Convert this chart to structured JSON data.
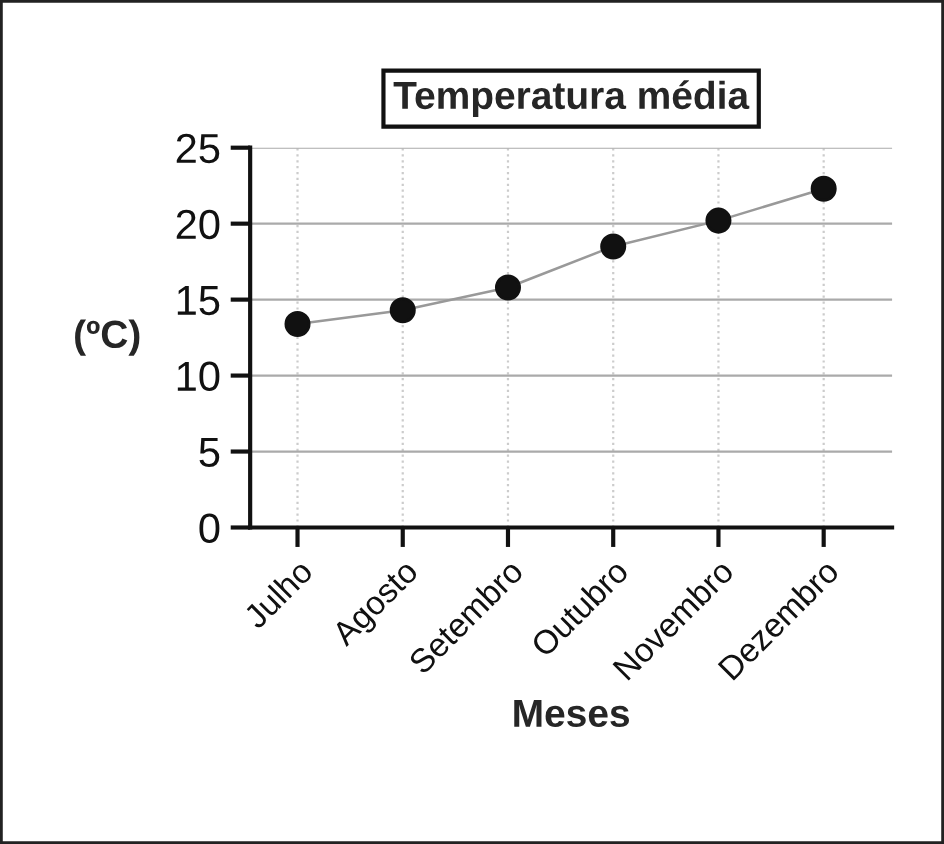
{
  "chart_data": {
    "type": "line",
    "title": "Temperatura média",
    "xlabel": "Meses",
    "ylabel": "(ºC)",
    "categories": [
      "Julho",
      "Agosto",
      "Setembro",
      "Outubro",
      "Novembro",
      "Dezembro"
    ],
    "series": [
      {
        "color": "#999999",
        "values": [
          13.4,
          14.3,
          15.8,
          18.5,
          20.2,
          22.3
        ]
      }
    ],
    "ylim": [
      0,
      25
    ],
    "yticks": [
      0,
      5,
      10,
      15,
      20,
      25
    ],
    "grid": true,
    "marker": "circle",
    "line_style": "solid"
  }
}
